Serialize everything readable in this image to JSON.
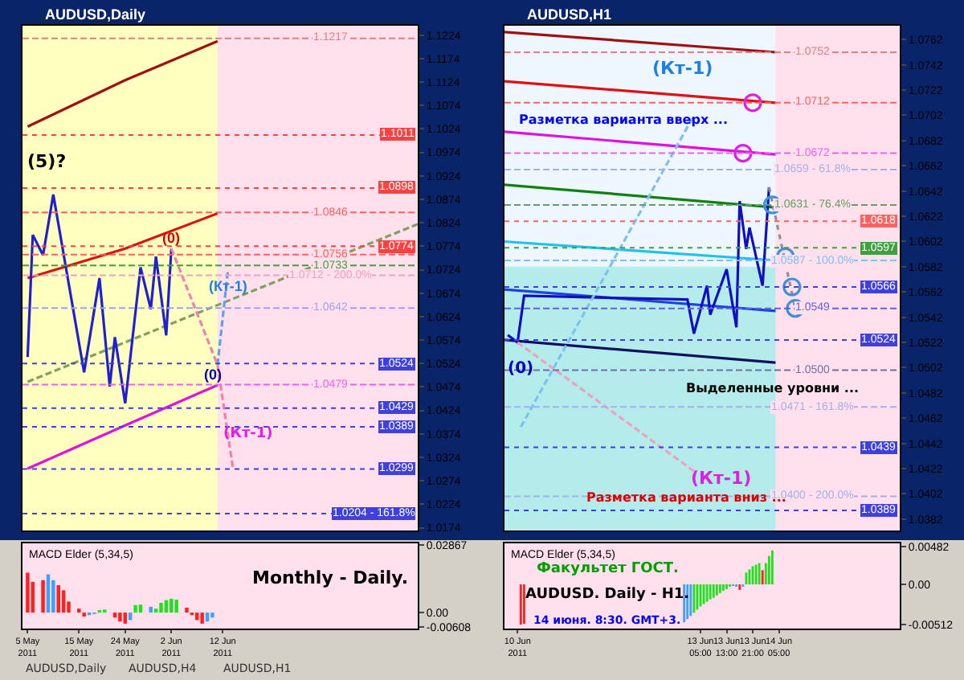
{
  "chart_data": [
    {
      "type": "line",
      "title": "AUDUSD,Daily",
      "tick_labels": "y",
      "xlim": [
        "2011-05-04",
        "2011-07-20"
      ],
      "ylim": [
        1.0168,
        1.1244
      ],
      "yticks": [
        1.1224,
        1.1174,
        1.1124,
        1.1074,
        1.1024,
        1.0974,
        1.0924,
        1.0874,
        1.0824,
        1.0774,
        1.0724,
        1.0674,
        1.0624,
        1.0574,
        1.0524,
        1.0474,
        1.0424,
        1.0374,
        1.0324,
        1.0274,
        1.0224,
        1.0174
      ],
      "bands": [
        {
          "axis": "x",
          "from": "2011-05-04",
          "to": "2011-06-11",
          "color": "#ffffc0"
        },
        {
          "axis": "x",
          "from": "2011-06-11",
          "to": "2011-07-20",
          "color": "#ffe0ec"
        }
      ],
      "series": [
        {
          "type": "line",
          "color": "#a01010",
          "x": [
            "2011-05-05",
            "2011-05-24",
            "2011-06-11"
          ],
          "values": [
            1.1029,
            1.1128,
            1.1211
          ]
        },
        {
          "type": "line",
          "color": "#e01010",
          "x": [
            "2011-05-05",
            "2011-05-24",
            "2011-06-11"
          ],
          "values": [
            1.0706,
            1.0769,
            1.0844
          ]
        },
        {
          "type": "line",
          "color": "#e010e0",
          "x": [
            "2011-05-05",
            "2011-05-24",
            "2011-06-11"
          ],
          "values": [
            1.03,
            1.0392,
            1.0478
          ]
        },
        {
          "type": "line",
          "color": "#80a060",
          "line_style": "dashed",
          "x": [
            "2011-05-05",
            "2011-07-20"
          ],
          "values": [
            1.0485,
            1.0821
          ]
        },
        {
          "type": "line",
          "color": "#2020d0",
          "x": [
            "2011-05-05",
            "2011-05-06",
            "2011-05-08",
            "2011-05-10",
            "2011-05-16",
            "2011-05-19",
            "2011-05-21",
            "2011-05-22",
            "2011-05-24",
            "2011-05-27",
            "2011-05-29",
            "2011-05-30",
            "2011-06-01",
            "2011-06-02"
          ],
          "values": [
            1.0538,
            1.0798,
            1.0755,
            1.0884,
            1.0505,
            1.0706,
            1.0475,
            1.058,
            1.0439,
            1.0729,
            1.064,
            1.0752,
            1.0584,
            1.0769
          ]
        },
        {
          "type": "line",
          "color": "#f080b0",
          "line_style": "dashed",
          "x": [
            "2011-06-02",
            "2011-06-11",
            "2011-06-14"
          ],
          "values": [
            1.0769,
            1.0521,
            1.03
          ]
        },
        {
          "type": "line",
          "color": "#60a0f0",
          "line_style": "dashed",
          "x": [
            "2011-06-11",
            "2011-06-13"
          ],
          "values": [
            1.0521,
            1.072
          ]
        }
      ],
      "ref_lines": [
        {
          "axis": "y",
          "value": 1.1217,
          "label": "1.1217",
          "color": "#e08080",
          "line_style": "dashed"
        },
        {
          "axis": "y",
          "value": 1.1011,
          "label": "1.1011",
          "color": "#ff4040",
          "line_style": "dotted"
        },
        {
          "axis": "y",
          "value": 1.0898,
          "label": "1.0898",
          "color": "#ff4040",
          "line_style": "dotted"
        },
        {
          "axis": "y",
          "value": 1.0846,
          "label": "1.0846",
          "color": "#ff6060",
          "line_style": "dashed"
        },
        {
          "axis": "y",
          "value": 1.0774,
          "label": "1.0774",
          "color": "#ff4040",
          "line_style": "dotted"
        },
        {
          "axis": "y",
          "value": 1.0756,
          "label": "1.0756",
          "color": "#ff6060",
          "line_style": "dashed"
        },
        {
          "axis": "y",
          "value": 1.0733,
          "label": "1.0733",
          "color": "#40a040",
          "line_style": "dashed"
        },
        {
          "axis": "y",
          "value": 1.0712,
          "label": "1.0712 - 200.0%",
          "color": "#f0a0c0",
          "line_style": "dashed"
        },
        {
          "axis": "y",
          "value": 1.0642,
          "label": "1.0642",
          "color": "#a0a0f0",
          "line_style": "dashed"
        },
        {
          "axis": "y",
          "value": 1.0524,
          "label": "1.0524",
          "color": "#4040e0",
          "line_style": "dotted"
        },
        {
          "axis": "y",
          "value": 1.0479,
          "label": "1.0479",
          "color": "#f060f0",
          "line_style": "dashed"
        },
        {
          "axis": "y",
          "value": 1.0429,
          "label": "1.0429",
          "color": "#4040e0",
          "line_style": "dotted"
        },
        {
          "axis": "y",
          "value": 1.0389,
          "label": "1.0389",
          "color": "#4040e0",
          "line_style": "dotted"
        },
        {
          "axis": "y",
          "value": 1.0299,
          "label": "1.0299",
          "color": "#4040e0",
          "line_style": "dotted"
        },
        {
          "axis": "y",
          "value": 1.0204,
          "label": "1.0204 - 161.8%",
          "color": "#4040e0",
          "line_style": "dotted"
        }
      ],
      "annotations": [
        "(5)?",
        {
          "text": "(0)",
          "x": "2011-06-02",
          "y": 1.079
        },
        {
          "text": "(0)",
          "x": "2011-06-10",
          "y": 1.05
        },
        {
          "text": "(Кт-1)",
          "x": "2011-06-13",
          "y": 1.069
        },
        "(Кт-1)"
      ]
    },
    {
      "type": "bar",
      "title": "MACD Elder (5,34,5)",
      "xlim": [
        "2011-05-04",
        "2011-07-20"
      ],
      "ylim": [
        -0.0068,
        0.0295
      ],
      "xticks": [
        {
          "value": "2011-05-05",
          "label": "5 May 2011"
        },
        {
          "value": "2011-05-15",
          "label": "15 May 2011"
        },
        {
          "value": "2011-05-24",
          "label": "24 May 2011"
        },
        {
          "value": "2011-06-02",
          "label": "2 Jun 2011"
        },
        {
          "value": "2011-06-12",
          "label": "12 Jun 2011"
        }
      ],
      "yticks": [
        0.02867,
        {
          "value": 0,
          "label": "0.00"
        },
        -0.00608
      ],
      "x": [
        "2011-05-05",
        "2011-05-06",
        "2011-05-08",
        "2011-05-09",
        "2011-05-10",
        "2011-05-11",
        "2011-05-12",
        "2011-05-13",
        "2011-05-15",
        "2011-05-16",
        "2011-05-17",
        "2011-05-18",
        "2011-05-19",
        "2011-05-20",
        "2011-05-22",
        "2011-05-23",
        "2011-05-24",
        "2011-05-25",
        "2011-05-26",
        "2011-05-27",
        "2011-05-29",
        "2011-05-30",
        "2011-05-31",
        "2011-06-01",
        "2011-06-02",
        "2011-06-03",
        "2011-06-05",
        "2011-06-06",
        "2011-06-07",
        "2011-06-08",
        "2011-06-09",
        "2011-06-10"
      ],
      "values": [
        0.017,
        0.0131,
        0.0138,
        0.0163,
        0.0138,
        0.0117,
        0.0095,
        0.0047,
        0.0017,
        -0.0017,
        -0.0011,
        -0.0006,
        0.0011,
        0.0013,
        -0.0021,
        -0.0038,
        -0.0047,
        -0.0032,
        0.0032,
        0.0034,
        0.0025,
        0.0017,
        0.0042,
        0.0053,
        0.0059,
        0.0055,
        0.0021,
        -0.0011,
        -0.0032,
        -0.0047,
        -0.0038,
        -0.0021
      ],
      "colors": [
        "#ff2020",
        "#ff2020",
        "#ff2020",
        "#40a0ff",
        "#40a0ff",
        "#ff2020",
        "#ff2020",
        "#ff2020",
        "#ff2020",
        "#ff2020",
        "#40a0ff",
        "#40a0ff",
        "#20e020",
        "#20e020",
        "#ff2020",
        "#ff2020",
        "#ff2020",
        "#40a0ff",
        "#20e020",
        "#20e020",
        "#40a0ff",
        "#20e020",
        "#20e020",
        "#20e020",
        "#20e020",
        "#20e020",
        "#ff2020",
        "#ff2020",
        "#ff2020",
        "#ff2020",
        "#40a0ff",
        "#40a0ff"
      ],
      "annotations": [
        "Monthly - Daily.",
        "AUDUSD,Daily",
        "AUDUSD,H4",
        "AUDUSD,H1"
      ]
    },
    {
      "type": "line",
      "title": "AUDUSD,H1",
      "tick_labels": "y",
      "xlim": [
        "2011-06-10T17:00",
        "2011-06-15T18:00"
      ],
      "ylim": [
        1.0373,
        1.0773
      ],
      "yticks": [
        1.0762,
        1.0742,
        1.0722,
        1.0702,
        1.0682,
        1.0662,
        1.0642,
        1.0622,
        1.0602,
        1.0582,
        1.0562,
        1.0542,
        1.0522,
        1.0502,
        1.0482,
        1.0462,
        1.0442,
        1.0422,
        1.0402,
        1.0382
      ],
      "bands": [
        {
          "axis": "y",
          "from": 1.0373,
          "to": 1.0582,
          "color": "#b4ecec"
        },
        {
          "axis": "x",
          "from": "2011-06-14T04:00",
          "to": "2011-06-15T18:00",
          "color": "#ffe0ec"
        }
      ],
      "series": [
        {
          "type": "line",
          "color": "#a01010",
          "x": [
            "2011-06-10T17:00",
            "2011-06-14T04:00"
          ],
          "values": [
            1.0768,
            1.0752
          ]
        },
        {
          "type": "line",
          "color": "#e01010",
          "x": [
            "2011-06-10T17:00",
            "2011-06-14T04:00"
          ],
          "values": [
            1.0729,
            1.0712
          ]
        },
        {
          "type": "line",
          "color": "#e010e0",
          "x": [
            "2011-06-10T17:00",
            "2011-06-14T04:00"
          ],
          "values": [
            1.0689,
            1.0671
          ]
        },
        {
          "type": "line",
          "color": "#108010",
          "x": [
            "2011-06-10T17:00",
            "2011-06-14T04:00"
          ],
          "values": [
            1.0647,
            1.0629
          ]
        },
        {
          "type": "line",
          "color": "#20c0f0",
          "x": [
            "2011-06-10T17:00",
            "2011-06-14T04:00"
          ],
          "values": [
            1.0602,
            1.0587
          ]
        },
        {
          "type": "line",
          "color": "#2040e0",
          "x": [
            "2011-06-10T17:00",
            "2011-06-14T04:00"
          ],
          "values": [
            1.0564,
            1.0547
          ]
        },
        {
          "type": "line",
          "color": "#101060",
          "x": [
            "2011-06-10T17:00",
            "2011-06-14T04:00"
          ],
          "values": [
            1.0524,
            1.0506
          ]
        },
        {
          "type": "line",
          "color": "#1010c0",
          "x": [
            "2011-06-10T18:00",
            "2011-06-10T21:00",
            "2011-06-10T23:00",
            "2011-06-13T01:00",
            "2011-06-13T03:00",
            "2011-06-13T07:00",
            "2011-06-13T08:00",
            "2011-06-13T13:00",
            "2011-06-13T16:00",
            "2011-06-13T17:00",
            "2011-06-13T19:00",
            "2011-06-13T20:00",
            "2011-06-14T00:00",
            "2011-06-14T02:00"
          ],
          "values": [
            1.0528,
            1.0522,
            1.0559,
            1.0556,
            1.0529,
            1.0567,
            1.0544,
            1.058,
            1.0534,
            1.0634,
            1.0596,
            1.0613,
            1.0567,
            1.0645
          ]
        },
        {
          "type": "line",
          "color": "#909090",
          "line_style": "dotted",
          "x": [
            "2011-06-14T02:00",
            "2011-06-14T10:00"
          ],
          "values": [
            1.0645,
            1.0549
          ]
        },
        {
          "type": "line",
          "color": "#f0a0c0",
          "line_style": "dashed",
          "x": [
            "2011-06-10T21:00",
            "2011-06-13T03:00"
          ],
          "values": [
            1.0522,
            1.042
          ]
        },
        {
          "type": "line",
          "color": "#80c0f0",
          "line_style": "dashed",
          "x": [
            "2011-06-10T22:00",
            "2011-06-13T03:00"
          ],
          "values": [
            1.0455,
            1.0702
          ]
        },
        {
          "type": "scatter",
          "marker": "circle",
          "colors": [
            "#e020e0",
            "#e020e0",
            "#4090e0",
            "#4090e0",
            "#4090e0",
            "#4090e0"
          ],
          "x": [
            "2011-06-13T18:00",
            "2011-06-13T21:00",
            "2011-06-14T03:00",
            "2011-06-14T07:00",
            "2011-06-14T09:00",
            "2011-06-14T10:00"
          ],
          "values": [
            1.0672,
            1.0712,
            1.0631,
            1.059,
            1.0566,
            1.0549
          ]
        }
      ],
      "ref_lines": [
        {
          "axis": "y",
          "value": 1.0752,
          "label": "1.0752",
          "color": "#e08080",
          "line_style": "dashed"
        },
        {
          "axis": "y",
          "value": 1.0712,
          "label": "1.0712",
          "color": "#ff6060",
          "line_style": "dashed"
        },
        {
          "axis": "y",
          "value": 1.0672,
          "label": "1.0672",
          "color": "#f060f0",
          "line_style": "dashed"
        },
        {
          "axis": "y",
          "value": 1.0659,
          "label": "1.0659 - 61.8%",
          "color": "#a0b0f0",
          "line_style": "dashed"
        },
        {
          "axis": "y",
          "value": 1.0631,
          "label": "1.0631 - 76.4%",
          "color": "#60a060",
          "line_style": "dashed"
        },
        {
          "axis": "y",
          "value": 1.0618,
          "label": "1.0618",
          "color": "#ff6060",
          "line_style": "dotted"
        },
        {
          "axis": "y",
          "value": 1.0597,
          "label": "1.0597",
          "color": "#40a040",
          "line_style": "dotted"
        },
        {
          "axis": "y",
          "value": 1.0587,
          "label": "1.0587 - 100.0%",
          "color": "#80c0f0",
          "line_style": "dashed"
        },
        {
          "axis": "y",
          "value": 1.0566,
          "label": "1.0566",
          "color": "#4040e0",
          "line_style": "dotted"
        },
        {
          "axis": "y",
          "value": 1.0549,
          "label": "1.0549",
          "color": "#6060e0",
          "line_style": "dashed"
        },
        {
          "axis": "y",
          "value": 1.0524,
          "label": "1.0524",
          "color": "#4040e0",
          "line_style": "dotted"
        },
        {
          "axis": "y",
          "value": 1.05,
          "label": "1.0500",
          "color": "#7070a0",
          "line_style": "dashed"
        },
        {
          "axis": "y",
          "value": 1.0471,
          "label": "1.0471 - 161.8%",
          "color": "#a0b0f0",
          "line_style": "dashed"
        },
        {
          "axis": "y",
          "value": 1.0439,
          "label": "1.0439",
          "color": "#4040e0",
          "line_style": "dotted"
        },
        {
          "axis": "y",
          "value": 1.04,
          "label": "1.0400 - 200.0%",
          "color": "#a0b0f0",
          "line_style": "dashed"
        },
        {
          "axis": "y",
          "value": 1.0389,
          "label": "1.0389",
          "color": "#4040e0",
          "line_style": "dotted"
        }
      ],
      "annotations": [
        "(0)",
        "(Кт-1)",
        "Разметка варианта вверх ...",
        "(Кт-1)",
        "Разметка варианта вниз ...",
        "Выделенные уровни ..."
      ]
    },
    {
      "type": "bar",
      "title": "MACD Elder (5,34,5)",
      "xlim": [
        "2011-06-10T17:00",
        "2011-06-15T18:00"
      ],
      "ylim": [
        -0.0056,
        0.0052
      ],
      "xticks": [
        {
          "value": "2011-06-10T21:00",
          "label": "10 Jun 2011"
        },
        {
          "value": "2011-06-13T05:00",
          "label": "13 Jun 05:00"
        },
        {
          "value": "2011-06-13T13:00",
          "label": "13 Jun 13:00"
        },
        {
          "value": "2011-06-13T21:00",
          "label": "13 Jun 21:00"
        },
        {
          "value": "2011-06-14T05:00",
          "label": "14 Jun 05:00"
        }
      ],
      "yticks": [
        0.00482,
        {
          "value": 0,
          "label": "0.00"
        },
        -0.00512
      ],
      "x": [
        "2011-06-10T22:00",
        "2011-06-10T23:00",
        "2011-06-13T00:00",
        "2011-06-13T01:00",
        "2011-06-13T02:00",
        "2011-06-13T03:00",
        "2011-06-13T04:00",
        "2011-06-13T05:00",
        "2011-06-13T06:00",
        "2011-06-13T07:00",
        "2011-06-13T08:00",
        "2011-06-13T09:00",
        "2011-06-13T10:00",
        "2011-06-13T11:00",
        "2011-06-13T12:00",
        "2011-06-13T13:00",
        "2011-06-13T14:00",
        "2011-06-13T15:00",
        "2011-06-13T16:00",
        "2011-06-13T17:00",
        "2011-06-13T18:00",
        "2011-06-13T19:00",
        "2011-06-13T20:00",
        "2011-06-13T21:00",
        "2011-06-13T22:00",
        "2011-06-13T23:00",
        "2011-06-14T00:00",
        "2011-06-14T01:00",
        "2011-06-14T02:00",
        "2011-06-14T03:00"
      ],
      "values": [
        -0.0051,
        -0.005,
        -0.0048,
        -0.0044,
        -0.004,
        -0.0036,
        -0.0032,
        -0.0028,
        -0.0025,
        -0.0022,
        -0.0019,
        -0.0017,
        -0.0014,
        -0.0011,
        -0.0008,
        -0.0006,
        -0.0003,
        -0.0002,
        -0.0003,
        -0.0007,
        -0.0003,
        0.0015,
        0.0019,
        0.0023,
        0.0025,
        0.0027,
        0.0018,
        0.0027,
        0.0036,
        0.0043
      ],
      "colors": [
        "#ff2020",
        "#ff2020",
        "#40a0ff",
        "#40a0ff",
        "#40a0ff",
        "#20e020",
        "#20e020",
        "#20e020",
        "#20e020",
        "#20e020",
        "#20e020",
        "#20e020",
        "#20e020",
        "#20e020",
        "#20e020",
        "#20e020",
        "#20e020",
        "#40a0ff",
        "#40a0ff",
        "#ff2020",
        "#40a0ff",
        "#20e020",
        "#20e020",
        "#20e020",
        "#20e020",
        "#20e020",
        "#ff2020",
        "#20e020",
        "#20e020",
        "#20e020"
      ],
      "annotations": [
        "Факультет ГОСТ.",
        "AUDUSD. Daily - H1.",
        "14 июня. 8:30. GMT+3."
      ]
    }
  ]
}
